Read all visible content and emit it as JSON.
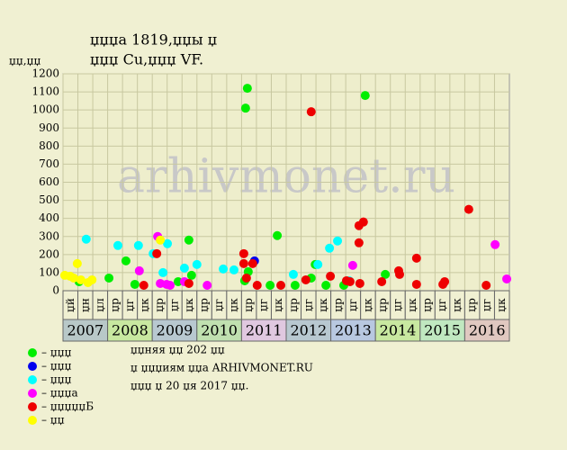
{
  "chart_data": {
    "type": "scatter",
    "title": "џџџа 1819,џџы џ",
    "subtitle": "џџџ Cu,џџџ VF.",
    "y_label": "џџ,џџ",
    "watermark": "arhivmonet.ru",
    "xlim": [
      2007,
      2017
    ],
    "ylim": [
      0,
      1200
    ],
    "yticks": [
      0,
      100,
      200,
      300,
      400,
      500,
      600,
      700,
      800,
      900,
      1000,
      1100,
      1200
    ],
    "grid": true,
    "years": [
      "2007",
      "2008",
      "2009",
      "2010",
      "2011",
      "2012",
      "2013",
      "2014",
      "2015",
      "2016"
    ],
    "subperiods": [
      "џй",
      "џн",
      "џл",
      "џр",
      "џг",
      "џк",
      "џр",
      "џг",
      "џк",
      "џр",
      "џг",
      "џк",
      "џр",
      "џг",
      "џк",
      "џр",
      "џг",
      "џк",
      "џр",
      "џг",
      "џк",
      "џр",
      "џг",
      "џк",
      "џр",
      "џг",
      "џк",
      "џр",
      "џг",
      "џк"
    ],
    "notes": [
      "џџняя џџ 202 џџ",
      "џ џџџиям џџа ARHIVMONET.RU",
      "џџџ џ 20 џя 2017 џџ."
    ],
    "series": [
      {
        "name": "– џџџ",
        "color": "#00ee00",
        "x": [
          2007.36,
          2008.03,
          2008.41,
          2008.61,
          2009.58,
          2009.82,
          2009.88,
          2011.07,
          2011.09,
          2011.13,
          2011.15,
          2011.64,
          2011.8,
          2012.2,
          2012.56,
          2012.65,
          2012.89,
          2013.29,
          2013.77,
          2014.22
        ],
        "values": [
          50,
          70,
          165,
          35,
          50,
          280,
          85,
          55,
          1010,
          1120,
          105,
          30,
          305,
          30,
          70,
          145,
          30,
          30,
          1080,
          90
        ]
      },
      {
        "name": "– џџџ",
        "color": "#0000ee",
        "x": [
          2011.29
        ],
        "values": [
          165
        ]
      },
      {
        "name": "– џџџ",
        "color": "#00ffff",
        "x": [
          2007.52,
          2008.23,
          2008.69,
          2009.02,
          2009.24,
          2009.34,
          2009.72,
          2010.0,
          2010.59,
          2010.83,
          2012.16,
          2012.71,
          2012.97,
          2013.15,
          2013.41
        ],
        "values": [
          285,
          250,
          250,
          205,
          100,
          260,
          125,
          145,
          120,
          115,
          90,
          145,
          235,
          275,
          55
        ]
      },
      {
        "name": "– џџџа",
        "color": "#ff00ff",
        "x": [
          2008.71,
          2009.12,
          2009.18,
          2009.32,
          2009.4,
          2009.72,
          2010.23,
          2013.49,
          2016.68,
          2016.94
        ],
        "values": [
          110,
          300,
          40,
          35,
          30,
          50,
          30,
          140,
          255,
          65
        ]
      },
      {
        "name": "– џџџџџБ",
        "color": "#ee0000",
        "x": [
          2008.81,
          2009.1,
          2009.82,
          2011.05,
          2011.05,
          2011.11,
          2011.25,
          2011.35,
          2011.88,
          2012.44,
          2012.56,
          2012.99,
          2013.35,
          2013.43,
          2013.63,
          2013.63,
          2013.73,
          2013.65,
          2014.14,
          2014.52,
          2014.54,
          2014.92,
          2014.92,
          2015.51,
          2015.55,
          2016.09,
          2016.48
        ],
        "values": [
          30,
          205,
          40,
          205,
          150,
          70,
          150,
          30,
          30,
          60,
          990,
          80,
          55,
          50,
          265,
          360,
          380,
          40,
          50,
          110,
          90,
          180,
          35,
          35,
          50,
          450,
          30
        ]
      },
      {
        "name": "– џџ",
        "color": "#ffff00",
        "x": [
          2007.16,
          2007.24,
          2007.32,
          2007.4,
          2007.56,
          2007.65,
          2009.18,
          2007.04
        ],
        "values": [
          80,
          70,
          150,
          60,
          45,
          60,
          280,
          85
        ]
      }
    ]
  }
}
